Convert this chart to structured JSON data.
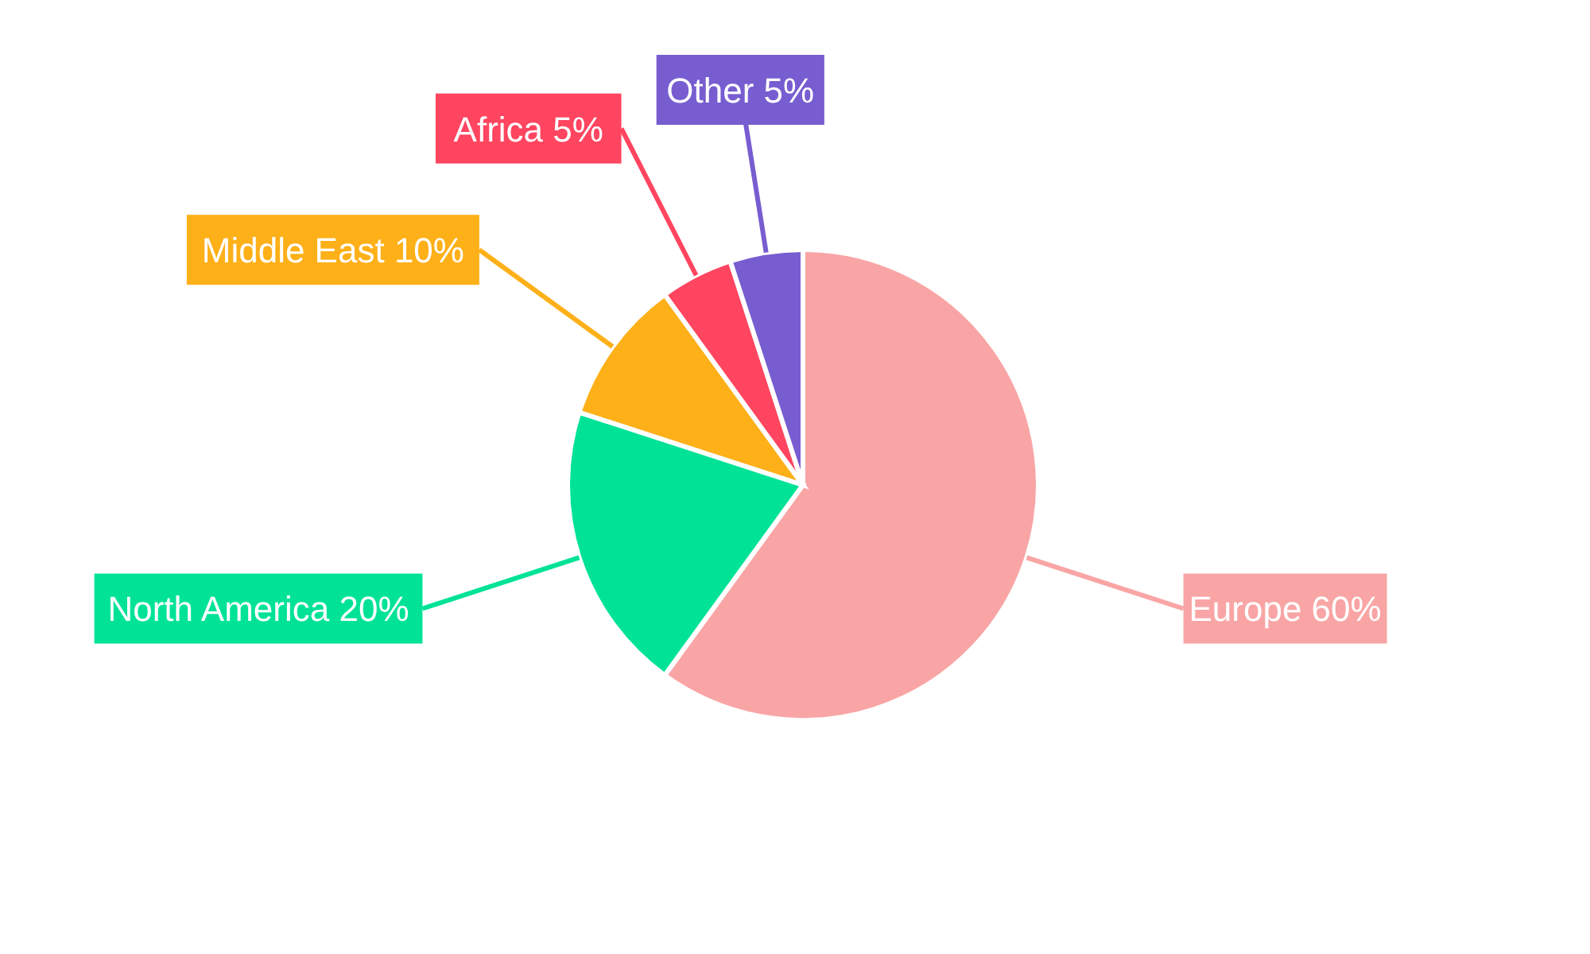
{
  "chart_data": {
    "type": "pie",
    "categories": [
      "Europe",
      "North America",
      "Middle East",
      "Africa",
      "Other"
    ],
    "values": [
      60,
      20,
      10,
      5,
      5
    ],
    "value_labels": [
      "60%",
      "20%",
      "10%",
      "5%",
      "5%"
    ],
    "colors": [
      "#f9a5a5",
      "#00e396",
      "#feb019",
      "#ff4560",
      "#775dd0"
    ],
    "legend": false
  }
}
